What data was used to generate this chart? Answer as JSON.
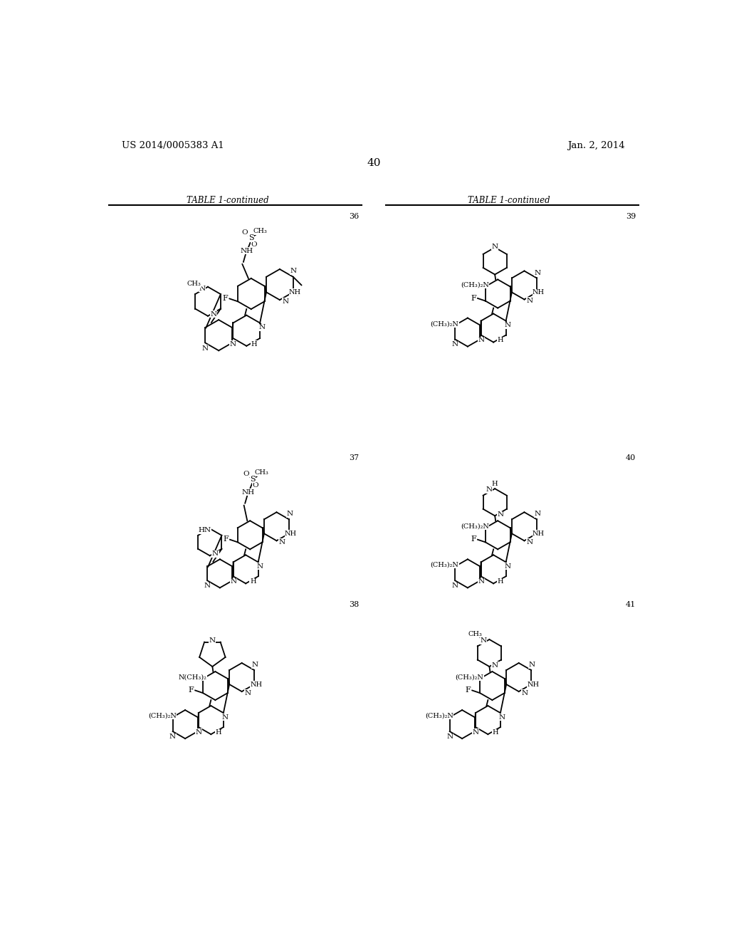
{
  "page_number": "40",
  "patent_number": "US 2014/0005383 A1",
  "patent_date": "Jan. 2, 2014",
  "table_header": "TABLE 1-continued",
  "background_color": "#ffffff",
  "text_color": "#000000",
  "compounds": [
    {
      "number": "36",
      "col": 0,
      "row": 0
    },
    {
      "number": "37",
      "col": 0,
      "row": 1
    },
    {
      "number": "38",
      "col": 0,
      "row": 2
    },
    {
      "number": "39",
      "col": 1,
      "row": 0
    },
    {
      "number": "40",
      "col": 1,
      "row": 1
    },
    {
      "number": "41",
      "col": 1,
      "row": 2
    }
  ]
}
